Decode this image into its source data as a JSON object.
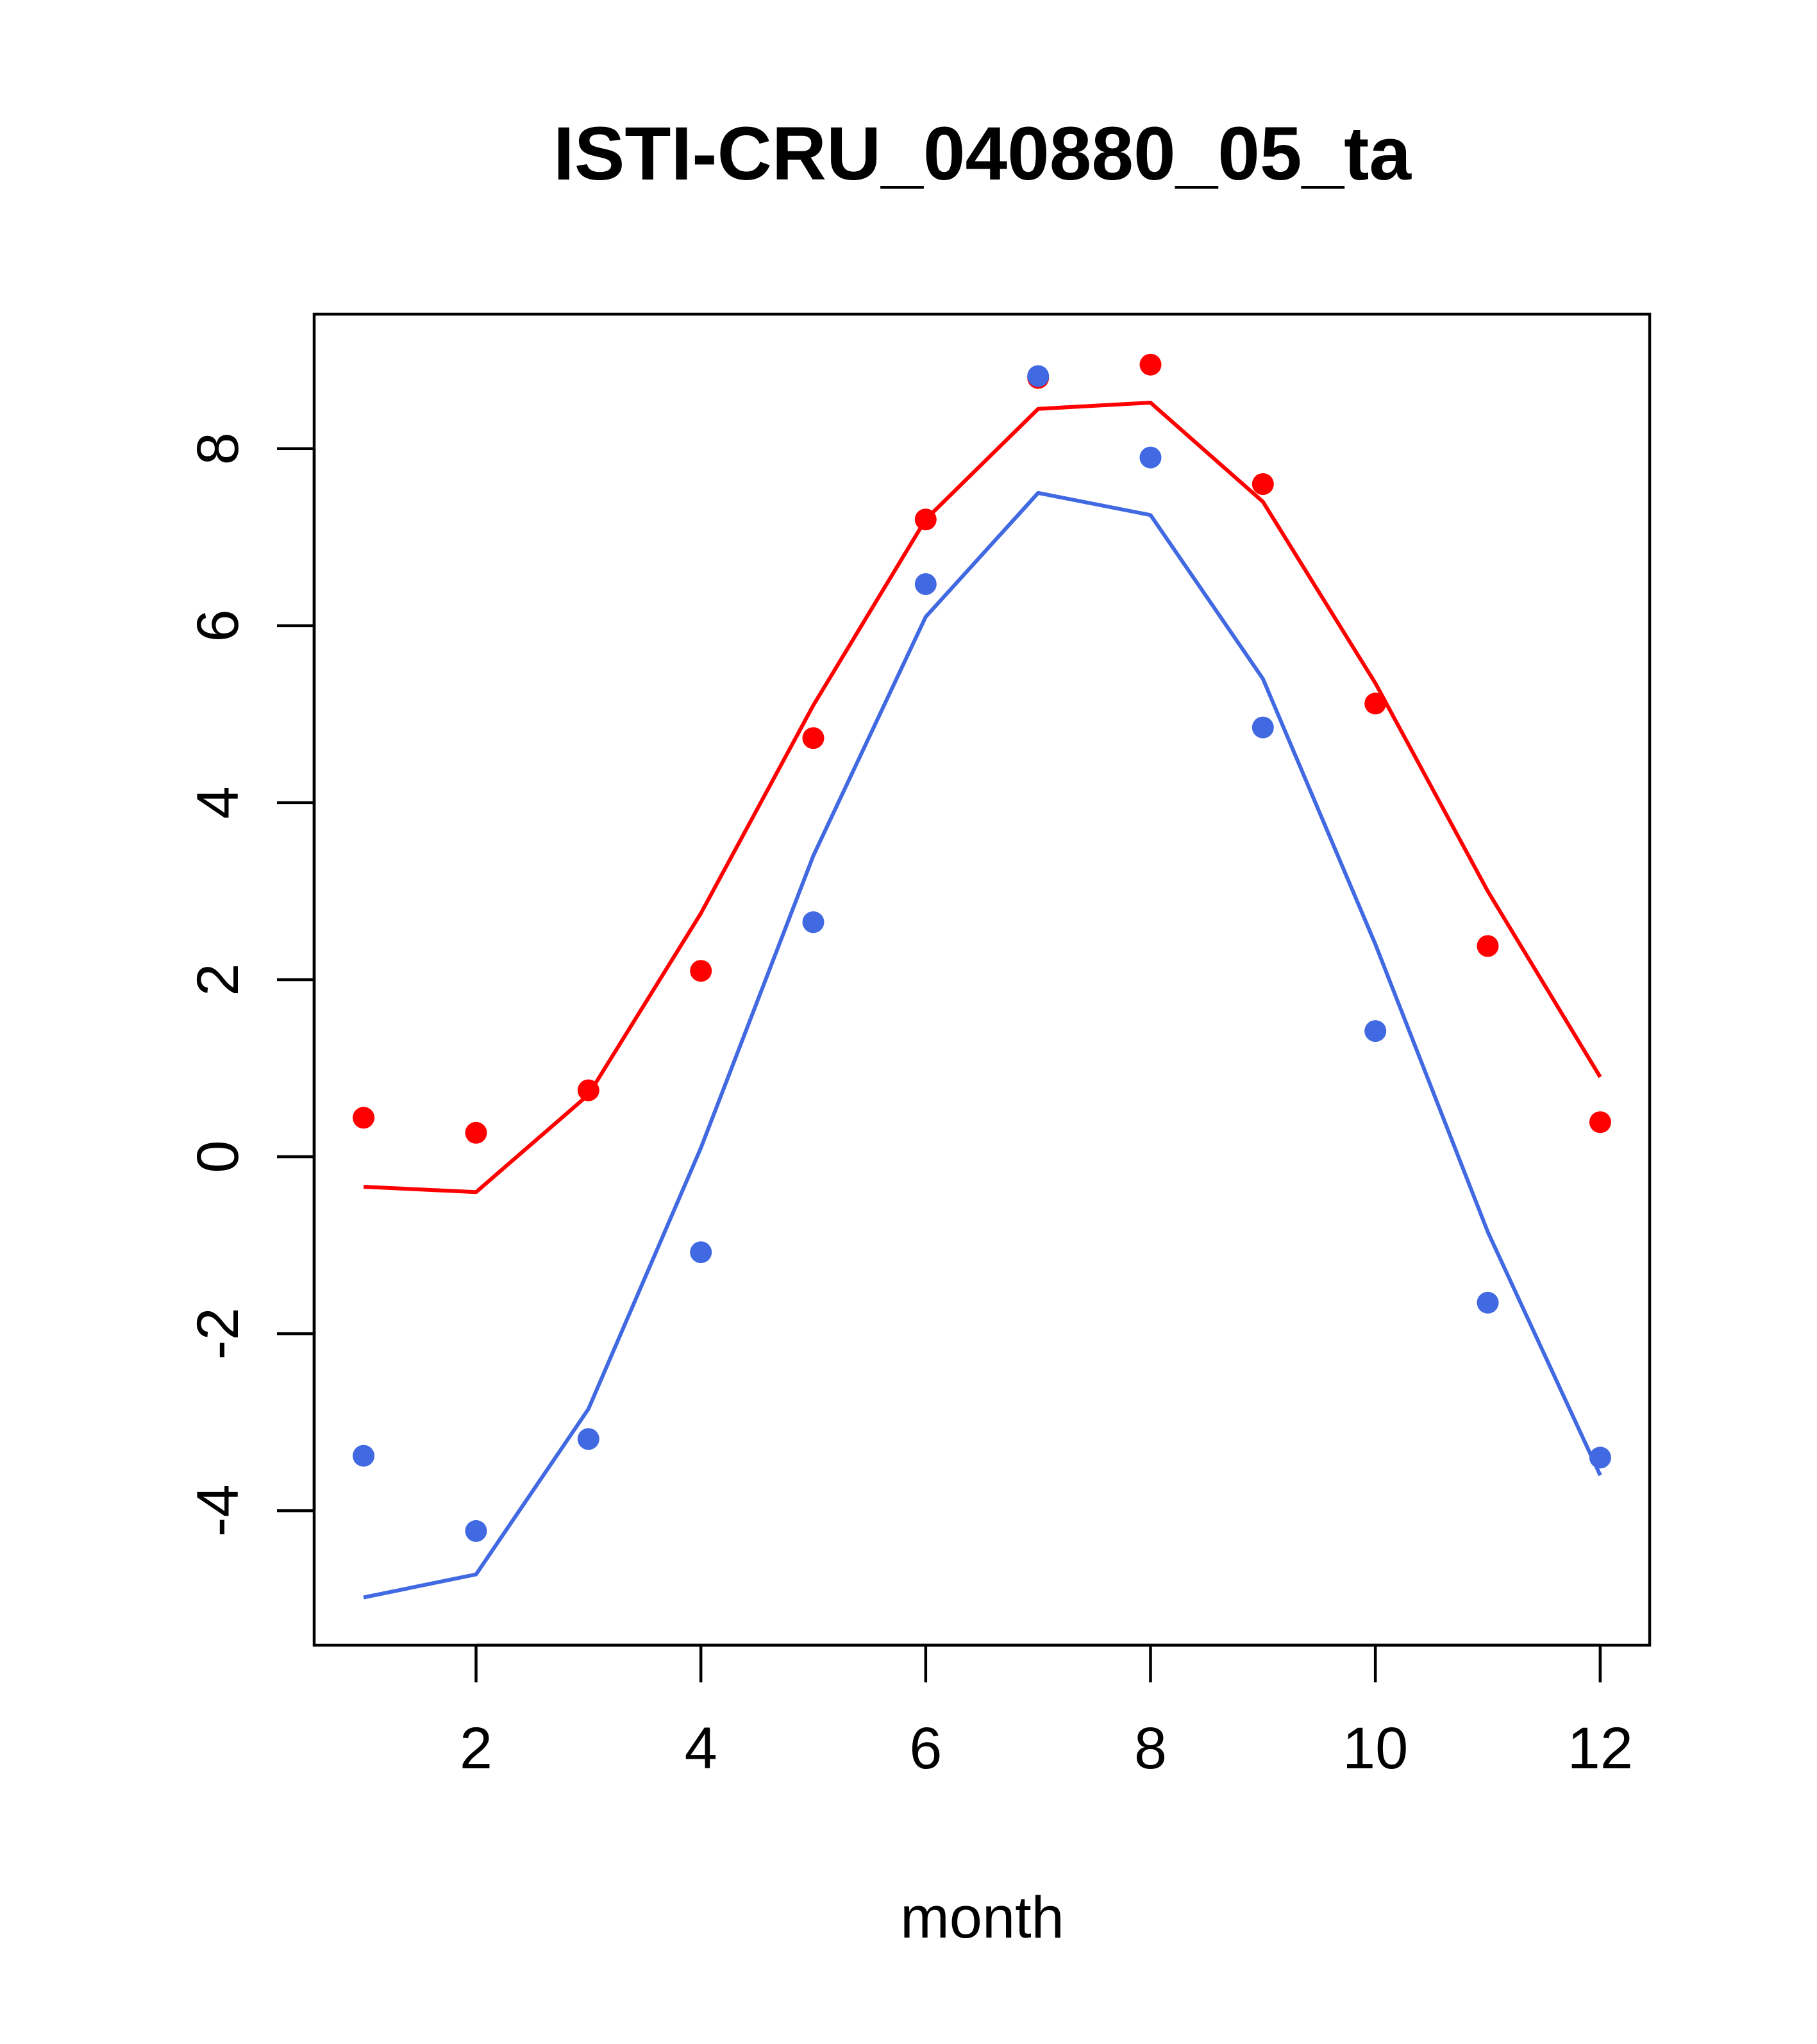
{
  "chart_data": {
    "type": "line",
    "title": "ISTI-CRU_040880_05_ta",
    "xlabel": "month",
    "ylabel": "",
    "x": [
      1,
      2,
      3,
      4,
      5,
      6,
      7,
      8,
      9,
      10,
      11,
      12
    ],
    "xlim": [
      0.56,
      12.44
    ],
    "ylim": [
      -5.52,
      9.52
    ],
    "xticks": [
      2,
      4,
      6,
      8,
      10,
      12
    ],
    "yticks": [
      -4,
      -2,
      0,
      2,
      4,
      6,
      8
    ],
    "grid": false,
    "legend": "none",
    "series": [
      {
        "color": "#ff0000",
        "line": [
          -0.34,
          -0.4,
          0.7,
          2.75,
          5.1,
          7.2,
          8.45,
          8.52,
          7.4,
          5.35,
          3.0,
          0.9
        ],
        "points": [
          0.44,
          0.27,
          0.75,
          2.1,
          4.73,
          7.2,
          8.8,
          8.95,
          7.6,
          5.12,
          2.38,
          0.39
        ]
      },
      {
        "color": "#4169e1",
        "line": [
          -4.98,
          -4.72,
          -2.85,
          0.1,
          3.4,
          6.1,
          7.5,
          7.25,
          5.4,
          2.4,
          -0.85,
          -3.6
        ],
        "points": [
          -3.38,
          -4.23,
          -3.19,
          -1.08,
          2.65,
          6.47,
          8.82,
          7.9,
          4.85,
          1.42,
          -1.65,
          -3.4
        ]
      }
    ]
  }
}
